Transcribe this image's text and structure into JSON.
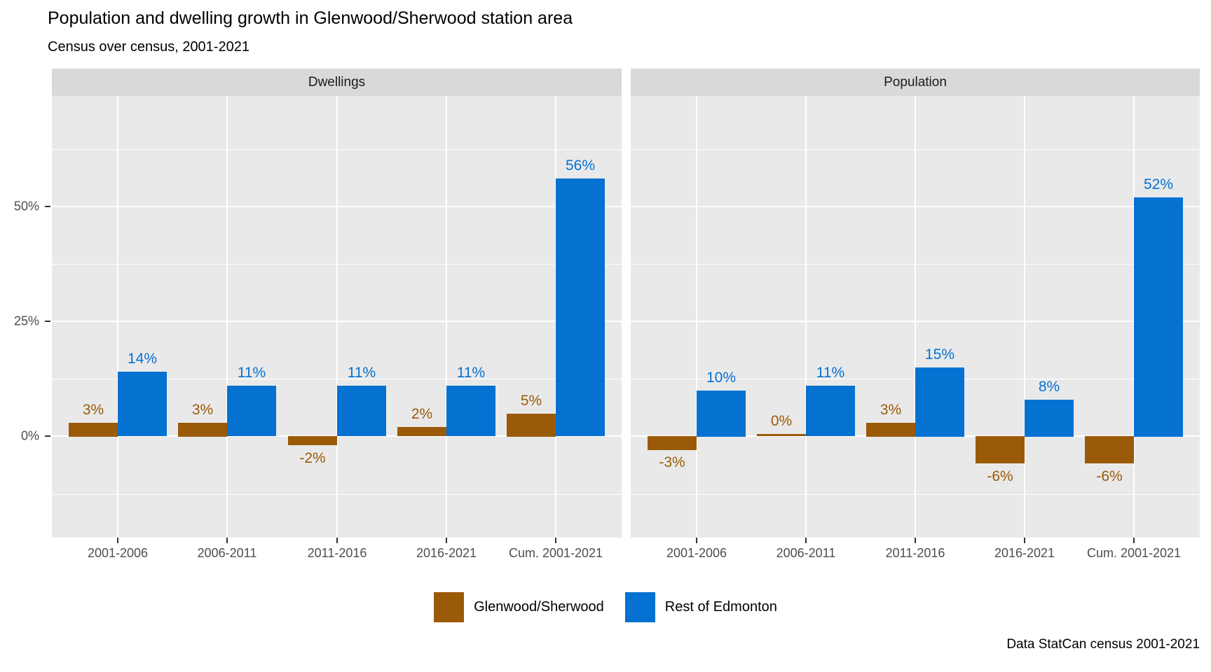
{
  "header": {
    "title": "Population and dwelling growth in Glenwood/Sherwood station area",
    "subtitle": "Census over census, 2001-2021"
  },
  "caption": "Data StatCan census 2001-2021",
  "legend": {
    "items": [
      {
        "label": "Glenwood/Sherwood",
        "color": "#9b5a08"
      },
      {
        "label": "Rest of Edmonton",
        "color": "#0571d1"
      }
    ]
  },
  "chart_data": {
    "type": "bar",
    "title": "Population and dwelling growth in Glenwood/Sherwood station area",
    "subtitle": "Census over census, 2001-2021",
    "caption": "Data StatCan census 2001-2021",
    "categories": [
      "2001-2006",
      "2006-2011",
      "2011-2016",
      "2016-2021",
      "Cum. 2001-2021"
    ],
    "facets": [
      {
        "label": "Dwellings",
        "series": [
          {
            "name": "Glenwood/Sherwood",
            "color": "#9b5a08",
            "values": [
              3,
              3,
              -2,
              2,
              5
            ],
            "labels": [
              "3%",
              "3%",
              "-2%",
              "2%",
              "5%"
            ]
          },
          {
            "name": "Rest of Edmonton",
            "color": "#0571d1",
            "values": [
              14,
              11,
              11,
              11,
              56
            ],
            "labels": [
              "14%",
              "11%",
              "11%",
              "11%",
              "56%"
            ]
          }
        ]
      },
      {
        "label": "Population",
        "series": [
          {
            "name": "Glenwood/Sherwood",
            "color": "#9b5a08",
            "values": [
              -3,
              0,
              3,
              -6,
              -6
            ],
            "labels": [
              "-3%",
              "0%",
              "3%",
              "-6%",
              "-6%"
            ]
          },
          {
            "name": "Rest of Edmonton",
            "color": "#0571d1",
            "values": [
              10,
              11,
              15,
              8,
              52
            ],
            "labels": [
              "10%",
              "11%",
              "15%",
              "8%",
              "52%"
            ]
          }
        ]
      }
    ],
    "ylabel": "",
    "xlabel": "",
    "ylim": [
      -22,
      74
    ],
    "y_major_breaks": [
      0,
      25,
      50
    ],
    "y_minor_breaks": [
      -12.5,
      12.5,
      37.5,
      62.5
    ],
    "y_tick_labels": [
      "0%",
      "25%",
      "50%"
    ],
    "grid": "on",
    "legend_position": "bottom",
    "panel_background": "#e9e9e9",
    "strip_background": "#d9d9d9",
    "axis_text_color": "#4d4d4d"
  }
}
